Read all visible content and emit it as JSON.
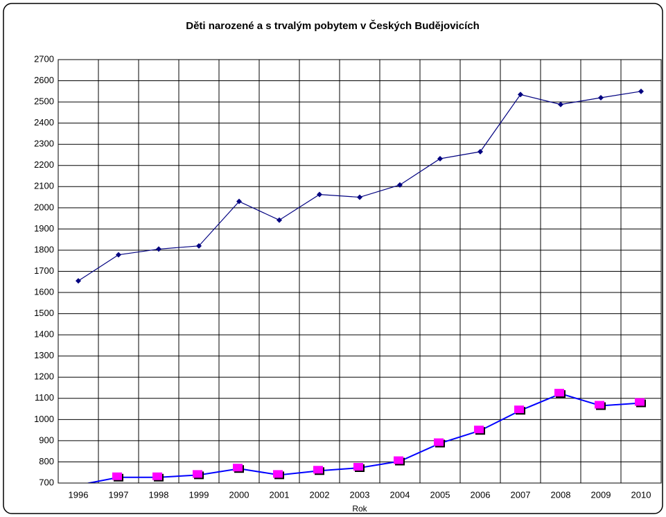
{
  "chart_data": {
    "type": "line",
    "title": "Děti narozené a s trvalým pobytem v Českých Budějovicích",
    "xlabel": "Rok",
    "categories": [
      "1996",
      "1997",
      "1998",
      "1999",
      "2000",
      "2001",
      "2002",
      "2003",
      "2004",
      "2005",
      "2006",
      "2007",
      "2008",
      "2009",
      "2010"
    ],
    "series": [
      {
        "color": "#000080",
        "marker": "diamond",
        "values": [
          1655,
          1778,
          1805,
          1820,
          2030,
          1942,
          2063,
          2050,
          2108,
          2232,
          2265,
          2535,
          2488,
          2520,
          2550
        ]
      },
      {
        "color": "#0000ff",
        "marker_color": "#ff00ff",
        "marker": "square",
        "values": [
          690,
          727,
          727,
          738,
          768,
          738,
          758,
          772,
          803,
          888,
          948,
          1043,
          1122,
          1065,
          1078
        ]
      }
    ],
    "ylim": [
      700,
      2700
    ],
    "yticks": [
      700,
      800,
      900,
      1000,
      1100,
      1200,
      1300,
      1400,
      1500,
      1600,
      1700,
      1800,
      1900,
      2000,
      2100,
      2200,
      2300,
      2400,
      2500,
      2600,
      2700
    ],
    "grid": true
  }
}
